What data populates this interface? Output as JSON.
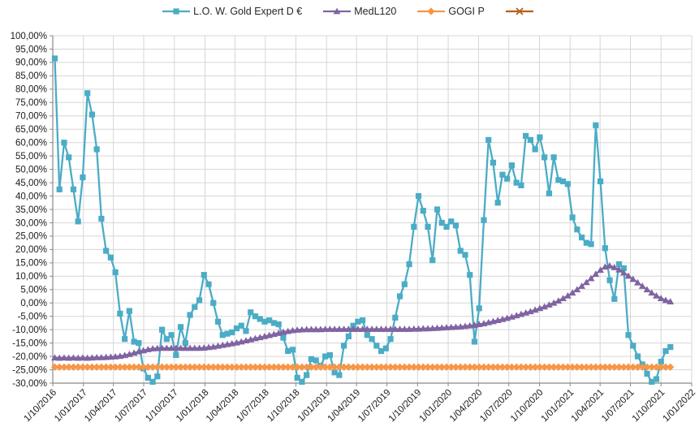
{
  "legend": {
    "items": [
      {
        "label": "L.O. W. Gold Expert D €",
        "marker": "square",
        "color": "#4BACC6"
      },
      {
        "label": "MedL120",
        "marker": "triangle",
        "color": "#8064A2"
      },
      {
        "label": "GOGI P",
        "marker": "diamond",
        "color": "#F79646"
      },
      {
        "label": "",
        "marker": "x",
        "color": "#B4601B"
      }
    ]
  },
  "chart_data": {
    "type": "line",
    "title": "",
    "xlabel": "",
    "ylabel": "",
    "grid": true,
    "legend_position": "top-center",
    "x_axis": {
      "range_start": "2016-10-01",
      "range_end": "2022-01-01",
      "tick_labels": [
        "1/10/2016",
        "1/01/2017",
        "1/04/2017",
        "1/07/2017",
        "1/10/2017",
        "1/01/2018",
        "1/04/2018",
        "1/07/2018",
        "1/10/2018",
        "1/01/2019",
        "1/04/2019",
        "1/07/2019",
        "1/10/2019",
        "1/01/2020",
        "1/04/2020",
        "1/07/2020",
        "1/10/2020",
        "1/01/2021",
        "1/04/2021",
        "1/07/2021",
        "1/10/2021",
        "1/01/2022"
      ]
    },
    "y_axis": {
      "min": -30,
      "max": 100,
      "step": 5,
      "tick_labels": [
        "100,00%",
        "95,00%",
        "90,00%",
        "85,00%",
        "80,00%",
        "75,00%",
        "70,00%",
        "65,00%",
        "60,00%",
        "55,00%",
        "50,00%",
        "45,00%",
        "40,00%",
        "35,00%",
        "30,00%",
        "25,00%",
        "20,00%",
        "15,00%",
        "10,00%",
        "5,00%",
        "0,00%",
        "-5,00%",
        "-10,00%",
        "-15,00%",
        "-20,00%",
        "-25,00%",
        "-30,00%"
      ]
    },
    "sampling": {
      "start_date": "2016-10-07",
      "interval_days": 14,
      "n_points": 133
    },
    "series": [
      {
        "name": "L.O. W. Gold Expert D €",
        "color": "#4BACC6",
        "marker": "square",
        "visible_in_plot": true,
        "values": [
          91.5,
          42.5,
          60,
          54.5,
          42.5,
          30.5,
          47,
          78.5,
          70.5,
          57.5,
          31.5,
          19.5,
          17,
          11.5,
          -4,
          -13.5,
          -3,
          -14.5,
          -15,
          -24.5,
          -28,
          -29.5,
          -27.5,
          -10,
          -13.5,
          -12,
          -19.5,
          -9,
          -15,
          -4.5,
          -1.5,
          1,
          10.5,
          7,
          0,
          -7,
          -12,
          -11.5,
          -11,
          -9.5,
          -8.5,
          -10.5,
          -3.5,
          -5,
          -6,
          -7,
          -6.5,
          -7.5,
          -8,
          -13,
          -18,
          -17.5,
          -28,
          -29.5,
          -27,
          -21,
          -21.5,
          -23.5,
          -20,
          -19.5,
          -26,
          -27,
          -16,
          -12.5,
          -8.5,
          -7,
          -6.5,
          -12,
          -13.5,
          -16,
          -18,
          -17,
          -13.5,
          -5.5,
          2.5,
          7,
          14.5,
          28.5,
          40,
          34.5,
          28.5,
          16,
          35,
          30,
          28.5,
          30.5,
          29,
          19.5,
          18,
          10.5,
          -14.5,
          -2,
          31,
          61,
          52.5,
          37.5,
          48,
          46.5,
          51.5,
          45,
          44,
          62.5,
          61,
          57.5,
          62,
          54.5,
          41,
          54.5,
          46,
          45.5,
          44.5,
          32,
          27.5,
          24.5,
          22.5,
          22,
          66.5,
          45.5,
          20.5,
          8.5,
          1.5,
          14.5,
          13,
          -12,
          -16,
          -20,
          -23,
          -26.5,
          -29.5,
          -28.5,
          -22,
          -18,
          -16.5
        ]
      },
      {
        "name": "MedL120",
        "color": "#8064A2",
        "marker": "triangle",
        "visible_in_plot": true,
        "values": [
          -20.5,
          -20.6,
          -20.5,
          -20.6,
          -20.5,
          -20.6,
          -20.5,
          -20.6,
          -20.5,
          -20.4,
          -20.4,
          -20.3,
          -20.2,
          -20.1,
          -19.9,
          -19.6,
          -19.2,
          -18.7,
          -18.2,
          -17.8,
          -17.4,
          -17.1,
          -17,
          -16.9,
          -16.9,
          -16.9,
          -16.9,
          -16.9,
          -16.9,
          -16.9,
          -16.9,
          -16.9,
          -16.8,
          -16.6,
          -16.4,
          -16.1,
          -15.8,
          -15.5,
          -15.2,
          -14.9,
          -14.5,
          -14.1,
          -13.7,
          -13.3,
          -12.9,
          -12.5,
          -12.1,
          -11.7,
          -11.3,
          -10.9,
          -10.6,
          -10.3,
          -10.1,
          -10,
          -9.9,
          -9.9,
          -9.9,
          -9.9,
          -9.8,
          -9.8,
          -9.8,
          -9.8,
          -9.8,
          -9.8,
          -9.8,
          -9.8,
          -9.8,
          -9.8,
          -9.8,
          -9.8,
          -9.8,
          -9.8,
          -9.8,
          -9.8,
          -9.8,
          -9.8,
          -9.8,
          -9.7,
          -9.7,
          -9.6,
          -9.6,
          -9.5,
          -9.4,
          -9.3,
          -9.2,
          -9.1,
          -9,
          -8.9,
          -8.7,
          -8.5,
          -8.3,
          -8,
          -7.7,
          -7.3,
          -6.9,
          -6.5,
          -6.1,
          -5.7,
          -5.2,
          -4.7,
          -4.2,
          -3.7,
          -3.2,
          -2.6,
          -2,
          -1.4,
          -0.7,
          0,
          0.8,
          1.7,
          2.7,
          3.8,
          5,
          6.3,
          7.7,
          9.2,
          10.8,
          12.3,
          13.5,
          13.9,
          13.3,
          12.4,
          11.3,
          10.1,
          8.9,
          7.6,
          6.3,
          5,
          3.8,
          2.7,
          1.7,
          1,
          0.5
        ]
      },
      {
        "name": "GOGI P",
        "color": "#F79646",
        "marker": "diamond",
        "visible_in_plot": true,
        "constant_value": -24,
        "values": null
      },
      {
        "name": "",
        "color": "#B4601B",
        "marker": "x",
        "visible_in_plot": false,
        "values": null,
        "note": "legend entry only; series not discernible in plot area"
      }
    ],
    "style": {
      "grid_color": "#D6D6D6",
      "axis_color": "#898989",
      "tick_text_color": "#1a1a1a",
      "background": "#ffffff"
    }
  }
}
